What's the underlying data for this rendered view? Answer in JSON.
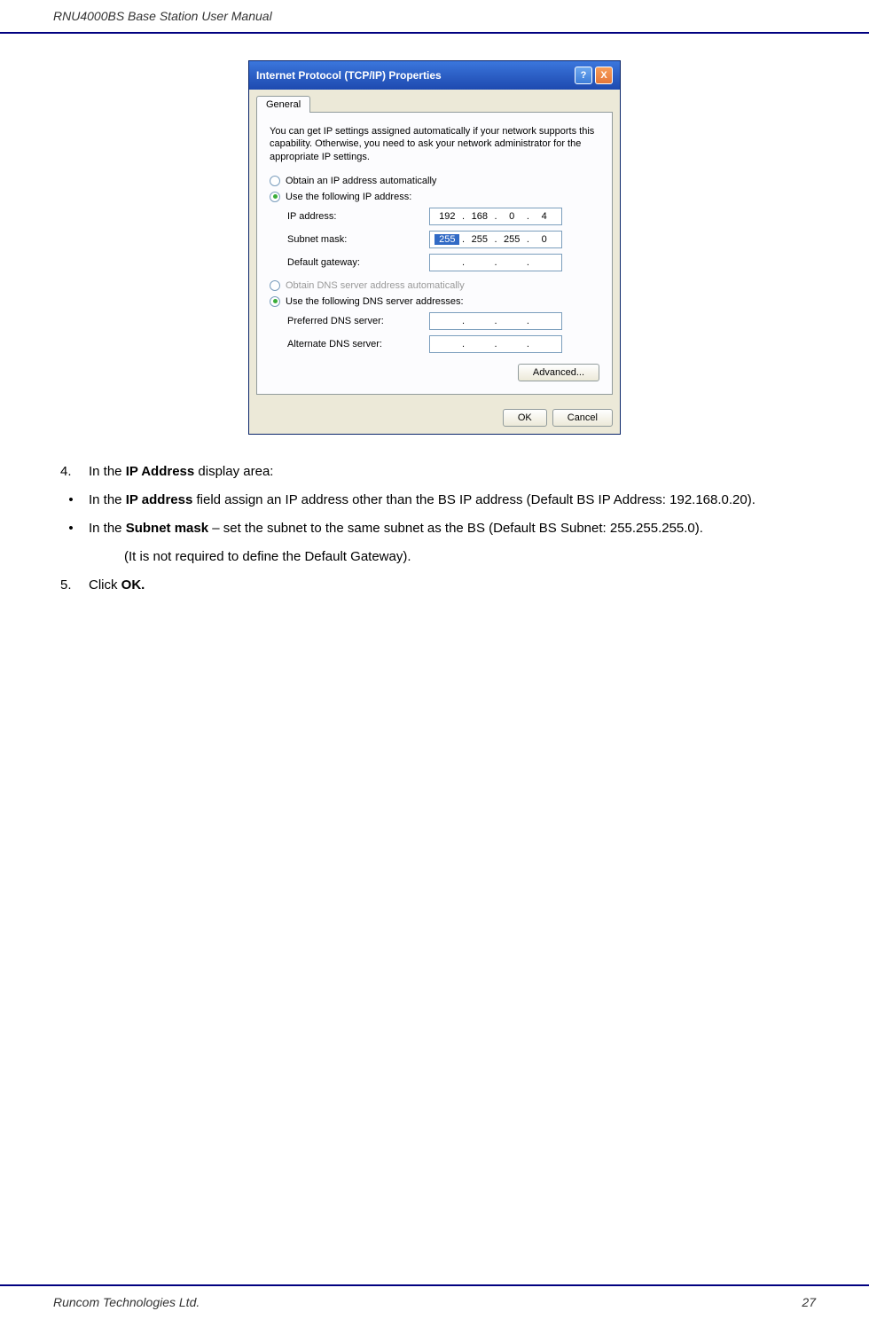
{
  "header": {
    "title": "RNU4000BS Base Station User Manual"
  },
  "footer": {
    "company": "Runcom Technologies Ltd.",
    "page": "27"
  },
  "dialog": {
    "title": "Internet Protocol (TCP/IP) Properties",
    "help_btn": "?",
    "close_btn": "X",
    "tab": "General",
    "description": "You can get IP settings assigned automatically if your network supports this capability. Otherwise, you need to ask your network administrator for the appropriate IP settings.",
    "radio_auto_ip": "Obtain an IP address automatically",
    "radio_use_ip": "Use the following IP address:",
    "ip_label": "IP address:",
    "ip_value": [
      "192",
      "168",
      "0",
      "4"
    ],
    "subnet_label": "Subnet mask:",
    "subnet_value": [
      "255",
      "255",
      "255",
      "0"
    ],
    "gateway_label": "Default gateway:",
    "radio_auto_dns": "Obtain DNS server address automatically",
    "radio_use_dns": "Use the following DNS server addresses:",
    "pref_dns_label": "Preferred DNS server:",
    "alt_dns_label": "Alternate DNS server:",
    "advanced_btn": "Advanced...",
    "ok_btn": "OK",
    "cancel_btn": "Cancel"
  },
  "instructions": {
    "step4_num": "4.",
    "step4_text_a": "In the ",
    "step4_text_b": "IP Address",
    "step4_text_c": " display area:",
    "bullet1_a": "In the ",
    "bullet1_b": "IP address",
    "bullet1_c": " field assign an IP address other than the BS IP address (Default BS IP Address: 192.168.0.20).",
    "bullet2_a": "In the ",
    "bullet2_b": "Subnet mask",
    "bullet2_c": " – set the subnet to the same subnet as the BS (Default BS Subnet: 255.255.255.0).",
    "gateway_note": "(It is not required to define the Default Gateway).",
    "step5_num": "5.",
    "step5_text_a": "Click ",
    "step5_text_b": "OK."
  }
}
